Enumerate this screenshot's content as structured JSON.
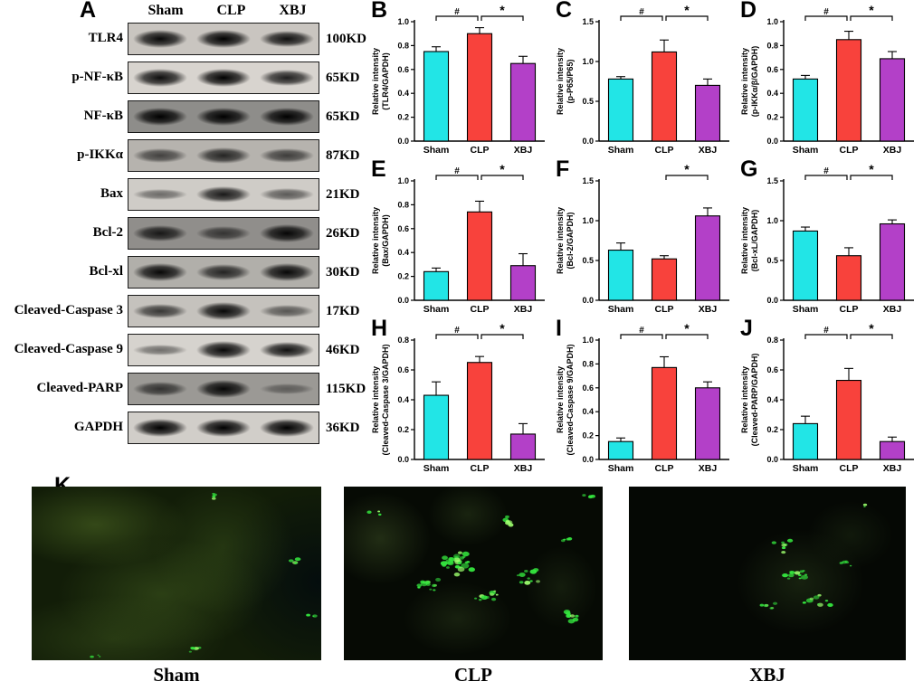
{
  "figure_bg": "#ffffff",
  "colors": {
    "sham": "#22E5E6",
    "clp": "#F8423C",
    "xbj": "#B340C8",
    "bar_stroke": "#000000"
  },
  "western": {
    "panel_letter": "A",
    "column_headers": [
      "Sham",
      "CLP",
      "XBJ"
    ],
    "rows": [
      {
        "label": "TLR4",
        "kd": "100KD",
        "bg": "#c9c5c0",
        "lanes": [
          0.95,
          1.0,
          0.9
        ]
      },
      {
        "label": "p-NF-κB",
        "kd": "65KD",
        "bg": "#d8d4cf",
        "lanes": [
          0.92,
          1.0,
          0.82
        ]
      },
      {
        "label": "NF-κB",
        "kd": "65KD",
        "bg": "#8e8d8a",
        "lanes": [
          1.0,
          1.0,
          1.0
        ]
      },
      {
        "label": "p-IKKα",
        "kd": "87KD",
        "bg": "#b6b3ae",
        "lanes": [
          0.55,
          0.75,
          0.58
        ]
      },
      {
        "label": "Bax",
        "kd": "21KD",
        "bg": "#cfccc7",
        "lanes": [
          0.35,
          0.85,
          0.45
        ]
      },
      {
        "label": "Bcl-2",
        "kd": "26KD",
        "bg": "#908e8b",
        "lanes": [
          0.8,
          0.55,
          0.95
        ]
      },
      {
        "label": "Bcl-xl",
        "kd": "30KD",
        "bg": "#b1afaa",
        "lanes": [
          0.95,
          0.75,
          0.95
        ]
      },
      {
        "label": "Cleaved-Caspase 3",
        "kd": "17KD",
        "bg": "#c5c2bd",
        "lanes": [
          0.65,
          0.95,
          0.45
        ]
      },
      {
        "label": "Cleaved-Caspase 9",
        "kd": "46KD",
        "bg": "#d6d3ce",
        "lanes": [
          0.35,
          0.95,
          0.9
        ]
      },
      {
        "label": "Cleaved-PARP",
        "kd": "115KD",
        "bg": "#9b9995",
        "lanes": [
          0.6,
          0.95,
          0.25
        ]
      },
      {
        "label": "GAPDH",
        "kd": "36KD",
        "bg": "#d1cec9",
        "lanes": [
          1.0,
          1.0,
          1.0
        ]
      }
    ]
  },
  "chart_data": [
    {
      "panel": "B",
      "type": "bar",
      "categories": [
        "Sham",
        "CLP",
        "XBJ"
      ],
      "values": [
        0.75,
        0.9,
        0.65
      ],
      "errors": [
        0.04,
        0.05,
        0.06
      ],
      "ylabel": [
        "Relative intensity",
        "(TLR4/GAPDH)"
      ],
      "ylim": [
        0,
        1.0
      ],
      "yticks": [
        0,
        0.2,
        0.4,
        0.6,
        0.8,
        1.0
      ],
      "sig": [
        {
          "from": 0,
          "to": 1,
          "label": "#"
        },
        {
          "from": 1,
          "to": 2,
          "label": "*"
        }
      ]
    },
    {
      "panel": "C",
      "type": "bar",
      "categories": [
        "Sham",
        "CLP",
        "XBJ"
      ],
      "values": [
        0.78,
        1.12,
        0.7
      ],
      "errors": [
        0.03,
        0.15,
        0.08
      ],
      "ylabel": [
        "Relative intensity",
        "(p-P65/P65)"
      ],
      "ylim": [
        0,
        1.5
      ],
      "yticks": [
        0,
        0.5,
        1.0,
        1.5
      ],
      "sig": [
        {
          "from": 0,
          "to": 1,
          "label": "#"
        },
        {
          "from": 1,
          "to": 2,
          "label": "*"
        }
      ]
    },
    {
      "panel": "D",
      "type": "bar",
      "categories": [
        "Sham",
        "CLP",
        "XBJ"
      ],
      "values": [
        0.52,
        0.85,
        0.69
      ],
      "errors": [
        0.03,
        0.07,
        0.06
      ],
      "ylabel": [
        "Relative intensity",
        "(p-IKKα/β/GAPDH)"
      ],
      "ylim": [
        0,
        1.0
      ],
      "yticks": [
        0,
        0.2,
        0.4,
        0.6,
        0.8,
        1.0
      ],
      "sig": [
        {
          "from": 0,
          "to": 1,
          "label": "#"
        },
        {
          "from": 1,
          "to": 2,
          "label": "*"
        }
      ]
    },
    {
      "panel": "E",
      "type": "bar",
      "categories": [
        "Sham",
        "CLP",
        "XBJ"
      ],
      "values": [
        0.24,
        0.74,
        0.29
      ],
      "errors": [
        0.03,
        0.09,
        0.1
      ],
      "ylabel": [
        "Relative intensity",
        "(Bax/GAPDH)"
      ],
      "ylim": [
        0,
        1.0
      ],
      "yticks": [
        0,
        0.2,
        0.4,
        0.6,
        0.8,
        1.0
      ],
      "sig": [
        {
          "from": 0,
          "to": 1,
          "label": "#"
        },
        {
          "from": 1,
          "to": 2,
          "label": "*"
        }
      ]
    },
    {
      "panel": "F",
      "type": "bar",
      "categories": [
        "Sham",
        "CLP",
        "XBJ"
      ],
      "values": [
        0.63,
        0.52,
        1.06
      ],
      "errors": [
        0.09,
        0.04,
        0.1
      ],
      "ylabel": [
        "Relative intensity",
        "(Bcl-2/GAPDH)"
      ],
      "ylim": [
        0,
        1.5
      ],
      "yticks": [
        0,
        0.5,
        1.0,
        1.5
      ],
      "sig": [
        {
          "from": 1,
          "to": 2,
          "label": "*"
        }
      ]
    },
    {
      "panel": "G",
      "type": "bar",
      "categories": [
        "Sham",
        "CLP",
        "XBJ"
      ],
      "values": [
        0.87,
        0.56,
        0.96
      ],
      "errors": [
        0.05,
        0.1,
        0.05
      ],
      "ylabel": [
        "Relative intensity",
        "(Bcl-xL/GAPDH)"
      ],
      "ylim": [
        0,
        1.5
      ],
      "yticks": [
        0,
        0.5,
        1.0,
        1.5
      ],
      "sig": [
        {
          "from": 0,
          "to": 1,
          "label": "#"
        },
        {
          "from": 1,
          "to": 2,
          "label": "*"
        }
      ]
    },
    {
      "panel": "H",
      "type": "bar",
      "categories": [
        "Sham",
        "CLP",
        "XBJ"
      ],
      "values": [
        0.43,
        0.65,
        0.17
      ],
      "errors": [
        0.09,
        0.04,
        0.07
      ],
      "ylabel": [
        "Relative intensity",
        "(Cleaved-Caspase 3/GAPDH)"
      ],
      "ylim": [
        0,
        0.8
      ],
      "yticks": [
        0,
        0.2,
        0.4,
        0.6,
        0.8
      ],
      "sig": [
        {
          "from": 0,
          "to": 1,
          "label": "#"
        },
        {
          "from": 1,
          "to": 2,
          "label": "*"
        }
      ]
    },
    {
      "panel": "I",
      "type": "bar",
      "categories": [
        "Sham",
        "CLP",
        "XBJ"
      ],
      "values": [
        0.15,
        0.77,
        0.6
      ],
      "errors": [
        0.03,
        0.09,
        0.05
      ],
      "ylabel": [
        "Relative intensity",
        "(Cleaved-Caspase 9/GAPDH)"
      ],
      "ylim": [
        0,
        1.0
      ],
      "yticks": [
        0,
        0.2,
        0.4,
        0.6,
        0.8,
        1.0
      ],
      "sig": [
        {
          "from": 0,
          "to": 1,
          "label": "#"
        },
        {
          "from": 1,
          "to": 2,
          "label": "*"
        }
      ]
    },
    {
      "panel": "J",
      "type": "bar",
      "categories": [
        "Sham",
        "CLP",
        "XBJ"
      ],
      "values": [
        0.24,
        0.53,
        0.12
      ],
      "errors": [
        0.05,
        0.08,
        0.03
      ],
      "ylabel": [
        "Relative intensity",
        "(Cleaved-PARP/GAPDH)"
      ],
      "ylim": [
        0,
        0.8
      ],
      "yticks": [
        0,
        0.2,
        0.4,
        0.6,
        0.8
      ],
      "sig": [
        {
          "from": 0,
          "to": 1,
          "label": "#"
        },
        {
          "from": 1,
          "to": 2,
          "label": "*"
        }
      ]
    }
  ],
  "microscopy": {
    "panel_letter": "K",
    "speck_colors": {
      "bright": "#9dff6e",
      "main": "#35e93f"
    },
    "images": [
      {
        "label": "Sham",
        "base": "#121d08",
        "clusters": [
          [
            63,
            5,
            3,
            2,
            4,
            0.7
          ],
          [
            91,
            44,
            2,
            3,
            4,
            0.8
          ],
          [
            57,
            94,
            4,
            3,
            5,
            0.8
          ],
          [
            97,
            74,
            2,
            2,
            3,
            0.6
          ],
          [
            22,
            98,
            3,
            2,
            3,
            0.6
          ]
        ]
      },
      {
        "label": "CLP",
        "base": "#060a04",
        "clusters": [
          [
            44,
            44,
            7,
            7,
            26,
            1.1
          ],
          [
            33,
            57,
            5,
            5,
            14,
            1.0
          ],
          [
            55,
            64,
            5,
            4,
            10,
            0.9
          ],
          [
            72,
            52,
            5,
            5,
            10,
            0.9
          ],
          [
            64,
            20,
            4,
            3,
            6,
            0.8
          ],
          [
            88,
            74,
            4,
            4,
            8,
            0.9
          ],
          [
            94,
            7,
            3,
            3,
            4,
            0.7
          ],
          [
            12,
            16,
            3,
            3,
            3,
            0.7
          ],
          [
            86,
            32,
            3,
            3,
            4,
            0.7
          ]
        ]
      },
      {
        "label": "XBJ",
        "base": "#050804",
        "clusters": [
          [
            56,
            34,
            5,
            4,
            7,
            0.8
          ],
          [
            61,
            51,
            6,
            5,
            12,
            0.9
          ],
          [
            68,
            66,
            6,
            4,
            10,
            0.9
          ],
          [
            50,
            70,
            4,
            4,
            6,
            0.8
          ],
          [
            79,
            44,
            3,
            3,
            5,
            0.7
          ],
          [
            86,
            11,
            2,
            2,
            2,
            0.6
          ]
        ]
      }
    ]
  }
}
